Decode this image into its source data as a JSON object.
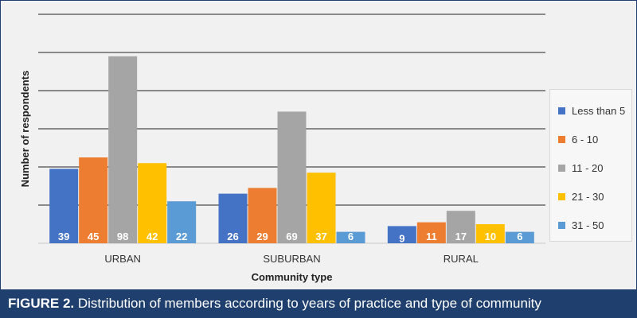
{
  "chart_data": {
    "type": "bar",
    "title": "",
    "xlabel": "Community type",
    "ylabel": "Number of respondents",
    "categories": [
      "URBAN",
      "SUBURBAN",
      "RURAL"
    ],
    "series": [
      {
        "name": "Less than 5",
        "color": "#4472c4",
        "values": [
          39,
          26,
          9
        ]
      },
      {
        "name": "6 - 10",
        "color": "#ed7d31",
        "values": [
          45,
          29,
          11
        ]
      },
      {
        "name": "11 - 20",
        "color": "#a5a5a5",
        "values": [
          98,
          69,
          17
        ]
      },
      {
        "name": "21 - 30",
        "color": "#ffc000",
        "values": [
          42,
          37,
          10
        ]
      },
      {
        "name": "31 - 50",
        "color": "#5b9bd5",
        "values": [
          22,
          6,
          6
        ]
      }
    ],
    "ylim": [
      0,
      120
    ],
    "grid": true,
    "legend": "right"
  },
  "caption": {
    "label": "FIGURE 2.",
    "text": "Distribution of members according to years of practice and type of community"
  },
  "colors": {
    "background": "#f1f1f1",
    "caption_bar": "#1f3f6e",
    "gridline": "#222222"
  }
}
